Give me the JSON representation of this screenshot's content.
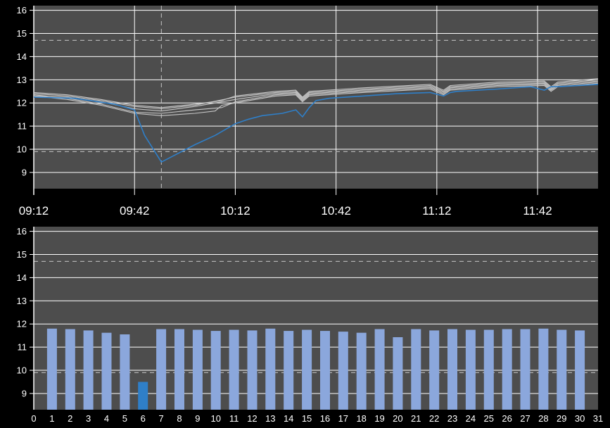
{
  "chart_data": [
    {
      "type": "line",
      "title": "",
      "xlabel": "",
      "ylabel": "",
      "xlim": [
        "09:12",
        "12:00"
      ],
      "ylim": [
        8.3,
        16.2
      ],
      "y_ticks": [
        9,
        10,
        11,
        12,
        13,
        14,
        15,
        16
      ],
      "x_ticks": [
        "09:12",
        "09:42",
        "10:12",
        "10:42",
        "11:12",
        "11:42"
      ],
      "reference_lines_y": [
        14.7,
        9.9
      ],
      "marker_time": "09:50",
      "grid": true,
      "colors": {
        "background": "#4d4d4d",
        "grid": "#ffffff",
        "reference": "#b0b0b0",
        "highlight": "#2f7fc8",
        "history": "#c8c8c8"
      },
      "series": [
        {
          "x": [
            "09:12",
            "09:24",
            "09:36",
            "09:42",
            "09:45",
            "09:50",
            "09:54",
            "10:00",
            "10:06",
            "10:12",
            "10:16",
            "10:20",
            "10:26",
            "10:30",
            "10:32",
            "10:34",
            "10:36",
            "10:40",
            "10:50",
            "11:00",
            "11:10",
            "11:14",
            "11:16",
            "11:18",
            "11:30",
            "11:40",
            "11:44",
            "11:46",
            "11:48",
            "12:00"
          ],
          "values": [
            12.25,
            12.2,
            11.95,
            11.7,
            10.6,
            9.45,
            9.75,
            10.2,
            10.6,
            11.1,
            11.3,
            11.45,
            11.55,
            11.7,
            11.4,
            11.8,
            12.1,
            12.2,
            12.3,
            12.4,
            12.45,
            12.3,
            12.45,
            12.5,
            12.6,
            12.7,
            12.55,
            12.7,
            12.7,
            12.8
          ]
        },
        {
          "x": [
            "09:12",
            "09:22",
            "09:32",
            "09:42",
            "09:50",
            "10:00",
            "10:12",
            "10:24",
            "10:30",
            "10:32",
            "10:34",
            "10:50",
            "11:10",
            "11:14",
            "11:16",
            "11:30",
            "11:44",
            "11:46",
            "11:48",
            "12:00"
          ],
          "values": [
            12.4,
            12.3,
            12.1,
            11.85,
            11.75,
            11.9,
            12.25,
            12.45,
            12.5,
            12.2,
            12.45,
            12.6,
            12.75,
            12.5,
            12.7,
            12.85,
            12.9,
            12.65,
            12.85,
            13.0
          ]
        },
        {
          "x": [
            "09:12",
            "09:22",
            "09:32",
            "09:42",
            "09:50",
            "10:00",
            "10:12",
            "10:24",
            "10:30",
            "10:32",
            "10:34",
            "10:50",
            "11:10",
            "11:14",
            "11:16",
            "11:30",
            "11:44",
            "11:46",
            "11:48",
            "12:00"
          ],
          "values": [
            12.3,
            12.25,
            12.05,
            11.75,
            11.65,
            11.85,
            12.15,
            12.4,
            12.45,
            12.15,
            12.4,
            12.55,
            12.7,
            12.45,
            12.65,
            12.8,
            12.85,
            12.6,
            12.8,
            12.95
          ]
        },
        {
          "x": [
            "09:12",
            "09:22",
            "09:32",
            "09:42",
            "09:50",
            "10:00",
            "10:08",
            "10:12",
            "10:24",
            "10:30",
            "10:32",
            "10:34",
            "10:50",
            "11:10",
            "11:14",
            "11:16",
            "11:30",
            "11:44",
            "11:46",
            "11:48",
            "12:00"
          ],
          "values": [
            12.35,
            12.2,
            11.95,
            11.6,
            11.55,
            11.7,
            11.8,
            12.05,
            12.35,
            12.4,
            12.1,
            12.35,
            12.5,
            12.65,
            12.4,
            12.6,
            12.75,
            12.8,
            12.55,
            12.75,
            12.9
          ]
        },
        {
          "x": [
            "09:12",
            "09:22",
            "09:32",
            "09:42",
            "09:50",
            "10:00",
            "10:06",
            "10:08",
            "10:12",
            "10:24",
            "10:30",
            "10:32",
            "10:34",
            "10:50",
            "11:10",
            "11:14",
            "11:16",
            "11:30",
            "11:44",
            "11:46",
            "11:48",
            "12:00"
          ],
          "values": [
            12.3,
            12.15,
            11.9,
            11.55,
            11.45,
            11.55,
            11.65,
            11.9,
            12.0,
            12.3,
            12.35,
            12.05,
            12.3,
            12.45,
            12.6,
            12.35,
            12.55,
            12.7,
            12.75,
            12.5,
            12.7,
            12.85
          ]
        },
        {
          "x": [
            "09:12",
            "09:22",
            "09:32",
            "09:42",
            "09:50",
            "10:00",
            "10:08",
            "10:12",
            "10:24",
            "10:30",
            "10:32",
            "10:34",
            "10:50",
            "11:10",
            "11:14",
            "11:16",
            "11:30",
            "11:44",
            "11:46",
            "11:48",
            "12:00"
          ],
          "values": [
            12.45,
            12.35,
            12.15,
            11.9,
            11.8,
            11.95,
            12.1,
            12.3,
            12.5,
            12.55,
            12.25,
            12.5,
            12.65,
            12.8,
            12.55,
            12.75,
            12.9,
            12.95,
            12.7,
            12.9,
            13.05
          ]
        }
      ]
    },
    {
      "type": "bar",
      "title": "",
      "xlabel": "",
      "ylabel": "",
      "ylim": [
        8.3,
        16.2
      ],
      "y_ticks": [
        9,
        10,
        11,
        12,
        13,
        14,
        15,
        16
      ],
      "x_ticks": [
        "0",
        "1",
        "2",
        "3",
        "4",
        "5",
        "6",
        "7",
        "8",
        "9",
        "10",
        "11",
        "12",
        "13",
        "14",
        "15",
        "16",
        "17",
        "18",
        "19",
        "20",
        "21",
        "22",
        "23",
        "24",
        "25",
        "26",
        "27",
        "28",
        "29",
        "30",
        "31"
      ],
      "reference_lines_y": [
        14.7,
        9.9
      ],
      "grid": true,
      "colors": {
        "bar": "#8ba7dc",
        "highlight": "#2f7fc8"
      },
      "highlight_category": "6",
      "categories": [
        "1",
        "2",
        "3",
        "4",
        "5",
        "6",
        "7",
        "8",
        "9",
        "10",
        "11",
        "12",
        "13",
        "14",
        "15",
        "16",
        "17",
        "18",
        "19",
        "20",
        "21",
        "22",
        "23",
        "24",
        "25",
        "26",
        "27",
        "28",
        "29",
        "30"
      ],
      "values": [
        11.8,
        11.78,
        11.72,
        11.62,
        11.55,
        9.5,
        11.78,
        11.78,
        11.75,
        11.7,
        11.75,
        11.72,
        11.8,
        11.7,
        11.75,
        11.7,
        11.67,
        11.62,
        11.78,
        11.43,
        11.78,
        11.72,
        11.78,
        11.75,
        11.75,
        11.78,
        11.78,
        11.8,
        11.75,
        11.72
      ]
    }
  ]
}
